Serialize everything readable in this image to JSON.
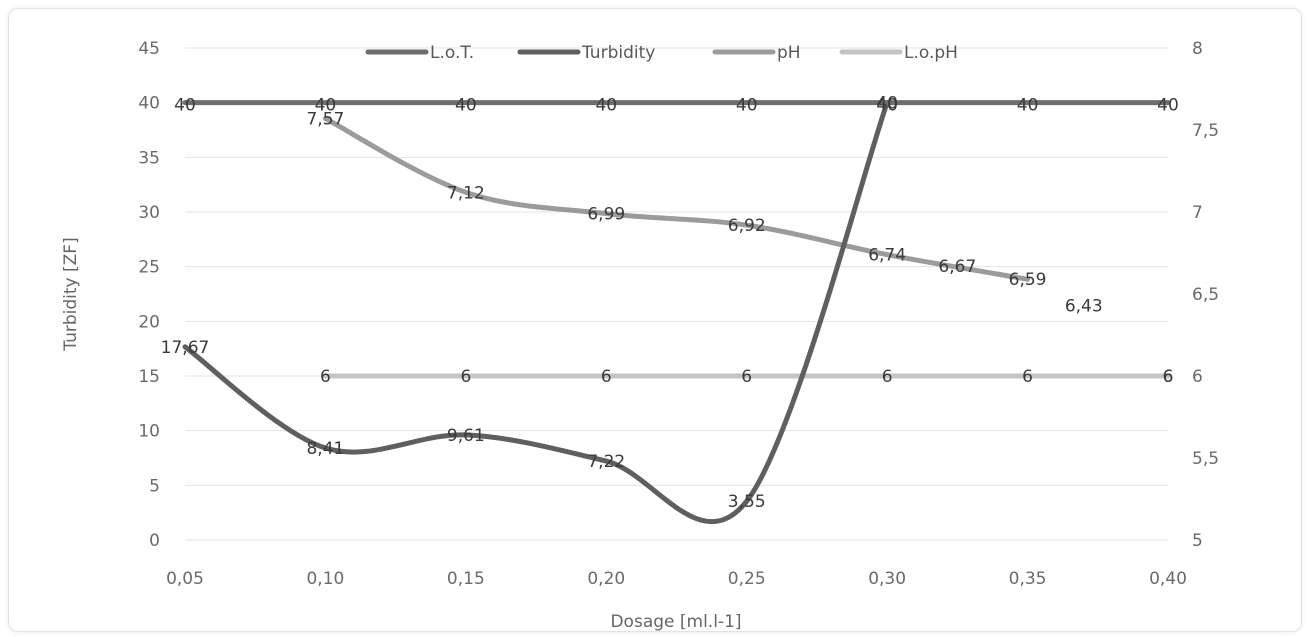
{
  "chart_data": {
    "type": "line",
    "xlabel": "Dosage [ml.l-1]",
    "ylabel": "Turbidity [ZF]",
    "x_ticks": [
      "0,05",
      "0,10",
      "0,15",
      "0,20",
      "0,25",
      "0,30",
      "0,35",
      "0,40"
    ],
    "y_ticks": [
      "0",
      "5",
      "10",
      "15",
      "20",
      "25",
      "30",
      "35",
      "40",
      "45"
    ],
    "y2_ticks": [
      "5",
      "5,5",
      "6",
      "6,5",
      "7",
      "7,5",
      "8"
    ],
    "xlim": [
      0.05,
      0.4
    ],
    "ylim": [
      0,
      45
    ],
    "y2lim": [
      5,
      8
    ],
    "grid": true,
    "legend_position": "top",
    "series": [
      {
        "name": "L.o.T.",
        "axis": "left",
        "color": "#6e6e6e",
        "x": [
          0.05,
          0.1,
          0.15,
          0.2,
          0.25,
          0.3,
          0.35,
          0.4
        ],
        "values": [
          40,
          40,
          40,
          40,
          40,
          40,
          40,
          40
        ],
        "labels": [
          "40",
          "40",
          "40",
          "40",
          "40",
          "40",
          "40",
          "40"
        ],
        "smooth": false
      },
      {
        "name": "Turbidity",
        "axis": "left",
        "color": "#5f5f5f",
        "x": [
          0.05,
          0.1,
          0.15,
          0.2,
          0.25,
          0.3
        ],
        "values": [
          17.67,
          8.41,
          9.61,
          7.22,
          3.55,
          40
        ],
        "labels": [
          "17,67",
          "8,41",
          "9,61",
          "7,22",
          "3,55",
          "40"
        ],
        "smooth": true
      },
      {
        "name": "pH",
        "axis": "right",
        "color": "#9b9b9b",
        "x": [
          0.1,
          0.15,
          0.2,
          0.25,
          0.3,
          0.35
        ],
        "values": [
          7.57,
          7.12,
          6.99,
          6.92,
          6.74,
          6.59
        ],
        "labels": [
          "7,57",
          "7,12",
          "6,99",
          "6,92",
          "6,74",
          "6,59"
        ],
        "smooth": true
      },
      {
        "name": "L.o.pH",
        "axis": "right",
        "color": "#c4c4c4",
        "x": [
          0.1,
          0.15,
          0.2,
          0.25,
          0.3,
          0.35,
          0.4
        ],
        "values": [
          6,
          6,
          6,
          6,
          6,
          6,
          6
        ],
        "labels": [
          "6",
          "6",
          "6",
          "6",
          "6",
          "6",
          "6"
        ],
        "smooth": false
      }
    ],
    "extra_labels": [
      "6,67",
      "6,43",
      "6"
    ]
  }
}
